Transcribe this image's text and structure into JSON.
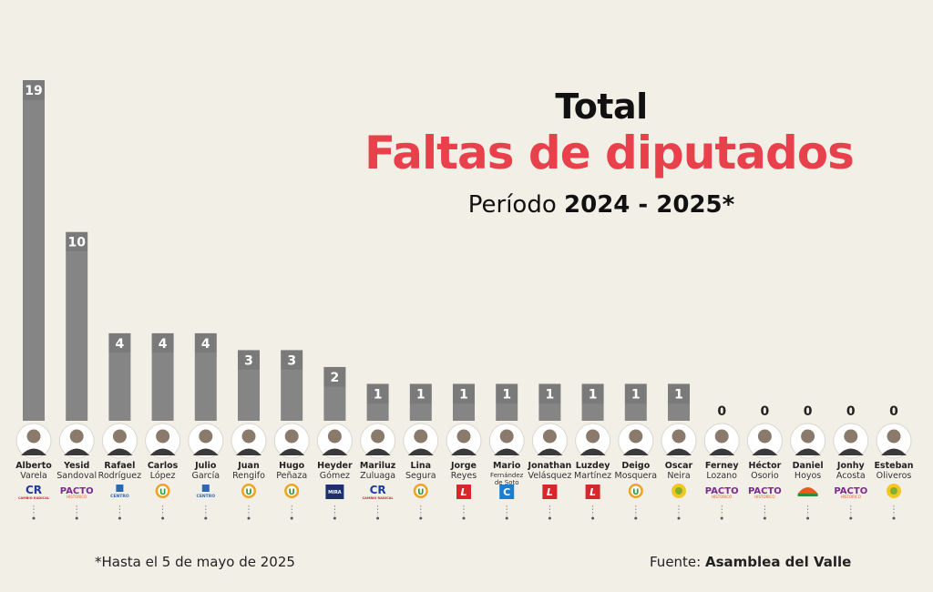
{
  "header": {
    "title_line1": "Total",
    "title_line2": "Faltas de diputados",
    "period_label": "Período",
    "period_years": "2024 - 2025*"
  },
  "footer": {
    "footnote": "*Hasta el 5 de mayo de 2025",
    "source_label": "Fuente:",
    "source_name": "Asamblea del Valle"
  },
  "colors": {
    "bar": "#858585",
    "bar_label_box": "#7a7a7a",
    "accent_red": "#e8414b",
    "background": "#f2efe7"
  },
  "chart_data": {
    "type": "bar",
    "categories": [
      {
        "first": "Alberto",
        "last": "Varela",
        "party": "CR",
        "party_text": "CAMBIO RADICAL",
        "party_color": "#1f3d9a"
      },
      {
        "first": "Yesid",
        "last": "Sandoval",
        "party": "PACTO",
        "party_text": "HISTÓRICO",
        "party_color": "#7b2b8e"
      },
      {
        "first": "Rafael",
        "last": "Rodríguez",
        "party": "CENTRO",
        "party_text": "CENTRO",
        "party_color": "#2d66b3"
      },
      {
        "first": "Carlos",
        "last": "López",
        "party": "U",
        "party_text": "",
        "party_color": "#f0a21b"
      },
      {
        "first": "Julio",
        "last": "García",
        "party": "CENTRO",
        "party_text": "CENTRO",
        "party_color": "#2d66b3"
      },
      {
        "first": "Juan",
        "last": "Rengifo",
        "party": "U",
        "party_text": "",
        "party_color": "#f0a21b"
      },
      {
        "first": "Hugo",
        "last": "Peñaza",
        "party": "U",
        "party_text": "",
        "party_color": "#f0a21b"
      },
      {
        "first": "Heyder",
        "last": "Gómez",
        "party": "MIRA",
        "party_text": "MIRA",
        "party_color": "#1e2f6e"
      },
      {
        "first": "Mariluz",
        "last": "Zuluaga",
        "party": "CR",
        "party_text": "CAMBIO RADICAL",
        "party_color": "#1f3d9a"
      },
      {
        "first": "Lina",
        "last": "Segura",
        "party": "U",
        "party_text": "",
        "party_color": "#f0a21b"
      },
      {
        "first": "Jorge",
        "last": "Reyes",
        "party": "L",
        "party_text": "",
        "party_color": "#d7262c"
      },
      {
        "first": "Mario",
        "last": "Fernández de Soto",
        "party": "C",
        "party_text": "",
        "party_color": "#1a7fd0"
      },
      {
        "first": "Jonathan",
        "last": "Velásquez",
        "party": "L",
        "party_text": "",
        "party_color": "#d7262c"
      },
      {
        "first": "Luzdey",
        "last": "Martínez",
        "party": "L",
        "party_text": "",
        "party_color": "#d7262c"
      },
      {
        "first": "Deigo",
        "last": "Mosquera",
        "party": "U",
        "party_text": "",
        "party_color": "#f0a21b"
      },
      {
        "first": "Oscar",
        "last": "Neira",
        "party": "SUN",
        "party_text": "",
        "party_color": "#7fb22a"
      },
      {
        "first": "Ferney",
        "last": "Lozano",
        "party": "PACTO",
        "party_text": "HISTÓRICO",
        "party_color": "#7b2b8e"
      },
      {
        "first": "Héctor",
        "last": "Osorio",
        "party": "PACTO",
        "party_text": "HISTÓRICO",
        "party_color": "#7b2b8e"
      },
      {
        "first": "Daniel",
        "last": "Hoyos",
        "party": "WAVE",
        "party_text": "",
        "party_color": "#e85a1e"
      },
      {
        "first": "Jonhy",
        "last": "Acosta",
        "party": "PACTO",
        "party_text": "HISTÓRICO",
        "party_color": "#7b2b8e"
      },
      {
        "first": "Esteban",
        "last": "Oliveros",
        "party": "SUN",
        "party_text": "",
        "party_color": "#7fb22a"
      }
    ],
    "values": [
      19,
      10,
      4,
      4,
      4,
      3,
      3,
      2,
      1,
      1,
      1,
      1,
      1,
      1,
      1,
      1,
      0,
      0,
      0,
      0,
      0
    ],
    "title": "Faltas de diputados",
    "xlabel": "",
    "ylabel": "",
    "ylim": [
      0,
      19
    ],
    "grid": false,
    "legend": "none"
  }
}
